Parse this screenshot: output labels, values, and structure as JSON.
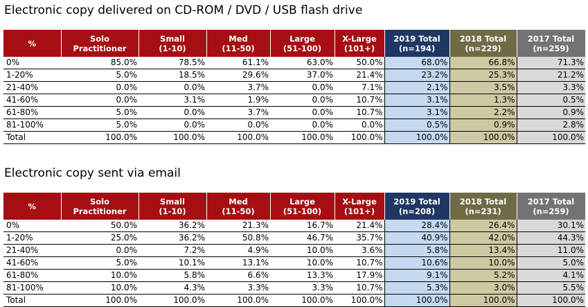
{
  "section1": {
    "title": "Electronic copy delivered on CD-ROM / DVD / USB flash drive",
    "headers": [
      [
        "%",
        ""
      ],
      [
        "Solo",
        "Practitioner"
      ],
      [
        "Small",
        "(1-10)"
      ],
      [
        "Med",
        "(11-50)"
      ],
      [
        "Large",
        "(51-100)"
      ],
      [
        "X-Large",
        "(101+)"
      ],
      [
        "2019 Total",
        "(n=194)"
      ],
      [
        "2018 Total",
        "(n=229)"
      ],
      [
        "2017 Total",
        "(n=259)"
      ]
    ],
    "rows": [
      [
        "0%",
        "85.0%",
        "78.5%",
        "61.1%",
        "63.0%",
        "50.0%",
        "68.0%",
        "66.8%",
        "71.3%"
      ],
      [
        "1-20%",
        "5.0%",
        "18.5%",
        "29.6%",
        "37.0%",
        "21.4%",
        "23.2%",
        "25.3%",
        "21.2%"
      ],
      [
        "21-40%",
        "0.0%",
        "0.0%",
        "3.7%",
        "0.0%",
        "7.1%",
        "2.1%",
        "3.5%",
        "3.3%"
      ],
      [
        "41-60%",
        "0.0%",
        "3.1%",
        "1.9%",
        "0.0%",
        "10.7%",
        "3.1%",
        "1.3%",
        "0.5%"
      ],
      [
        "61-80%",
        "5.0%",
        "0.0%",
        "3.7%",
        "0.0%",
        "10.7%",
        "3.1%",
        "2.2%",
        "0.9%"
      ],
      [
        "81-100%",
        "5.0%",
        "0.0%",
        "0.0%",
        "0.0%",
        "0.0%",
        "0.5%",
        "0.9%",
        "2.8%"
      ],
      [
        "Total",
        "100.0%",
        "100.0%",
        "100.0%",
        "100.0%",
        "100.0%",
        "100.0%",
        "100.0%",
        "100.0%"
      ]
    ]
  },
  "section2": {
    "title": "Electronic copy sent via email",
    "headers": [
      [
        "%",
        ""
      ],
      [
        "Solo",
        "Practitioner"
      ],
      [
        "Small",
        "(1-10)"
      ],
      [
        "Med",
        "(11-50)"
      ],
      [
        "Large",
        "(51-100)"
      ],
      [
        "X-Large",
        "(101+)"
      ],
      [
        "2019 Total",
        "(n=208)"
      ],
      [
        "2018 Total",
        "(n=231)"
      ],
      [
        "2017 Total",
        "(n=259)"
      ]
    ],
    "rows": [
      [
        "0%",
        "50.0%",
        "36.2%",
        "21.3%",
        "16.7%",
        "21.4%",
        "28.4%",
        "26.4%",
        "30.1%"
      ],
      [
        "1-20%",
        "25.0%",
        "36.2%",
        "50.8%",
        "46.7%",
        "35.7%",
        "40.9%",
        "42.0%",
        "44.3%"
      ],
      [
        "21-40%",
        "0.0%",
        "7.2%",
        "4.9%",
        "10.0%",
        "3.6%",
        "5.8%",
        "13.4%",
        "11.0%"
      ],
      [
        "41-60%",
        "5.0%",
        "10.1%",
        "13.1%",
        "10.0%",
        "10.7%",
        "10.6%",
        "10.0%",
        "5.0%"
      ],
      [
        "61-80%",
        "10.0%",
        "5.8%",
        "6.6%",
        "13.3%",
        "17.9%",
        "9.1%",
        "5.2%",
        "4.1%"
      ],
      [
        "81-100%",
        "10.0%",
        "4.3%",
        "3.3%",
        "3.3%",
        "10.7%",
        "5.3%",
        "3.0%",
        "5.5%"
      ],
      [
        "Total",
        "100.0%",
        "100.0%",
        "100.0%",
        "100.0%",
        "100.0%",
        "100.0%",
        "100.0%",
        "100.0%"
      ]
    ]
  },
  "colors": {
    "header_red": "#a50e12",
    "header_2019": "#1f3763",
    "header_2018": "#6e6b45",
    "header_2017": "#737373",
    "cell_2019": "#c5d9f1",
    "cell_2018": "#cfc9a3",
    "cell_2017": "#d9d9d9"
  }
}
